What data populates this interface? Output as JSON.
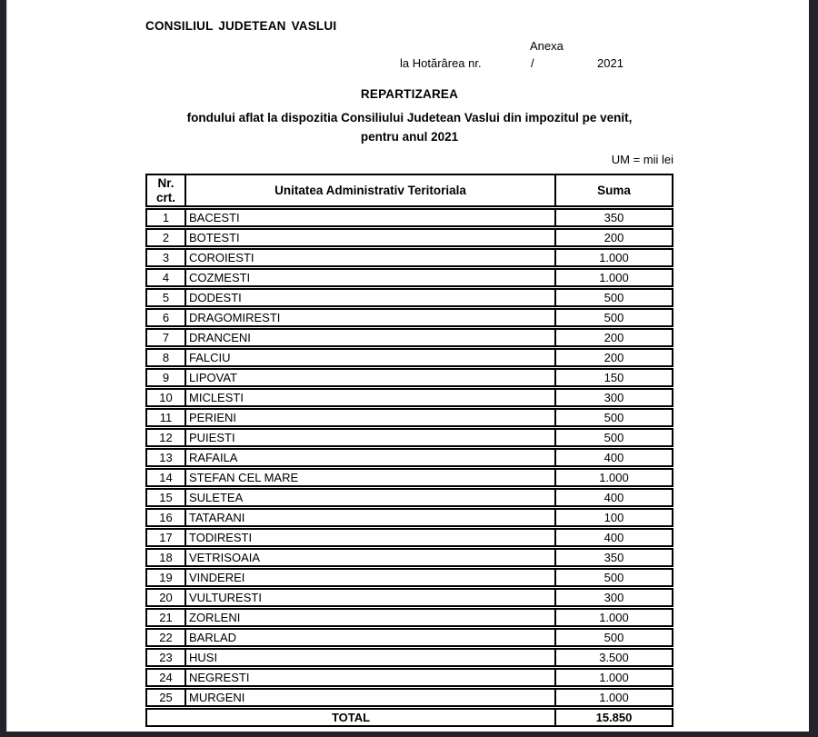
{
  "page": {
    "org_title": "CONSILIUL JUDETEAN VASLUI",
    "anexa_label": "Anexa",
    "hotarare_prefix": "la Hotărârea nr.",
    "hotarare_slash": "/",
    "hotarare_year": "2021",
    "doc_title": "REPARTIZAREA",
    "doc_subtitle_line1": "fondului aflat la dispozitia Consiliului Judetean Vaslui din impozitul pe venit,",
    "doc_subtitle_line2": "pentru anul 2021",
    "unit_note": "UM = mii lei"
  },
  "table": {
    "headers": {
      "col1": "Nr.\ncrt.",
      "col2": "Unitatea Administrativ Teritoriala",
      "col3": "Suma"
    },
    "rows": [
      {
        "nr": "1",
        "name": "BACESTI",
        "suma": "350"
      },
      {
        "nr": "2",
        "name": "BOTESTI",
        "suma": "200"
      },
      {
        "nr": "3",
        "name": "COROIESTI",
        "suma": "1.000"
      },
      {
        "nr": "4",
        "name": "COZMESTI",
        "suma": "1.000"
      },
      {
        "nr": "5",
        "name": "DODESTI",
        "suma": "500"
      },
      {
        "nr": "6",
        "name": "DRAGOMIRESTI",
        "suma": "500"
      },
      {
        "nr": "7",
        "name": "DRANCENI",
        "suma": "200"
      },
      {
        "nr": "8",
        "name": "FALCIU",
        "suma": "200"
      },
      {
        "nr": "9",
        "name": "LIPOVAT",
        "suma": "150"
      },
      {
        "nr": "10",
        "name": "MICLESTI",
        "suma": "300"
      },
      {
        "nr": "11",
        "name": "PERIENI",
        "suma": "500"
      },
      {
        "nr": "12",
        "name": "PUIESTI",
        "suma": "500"
      },
      {
        "nr": "13",
        "name": "RAFAILA",
        "suma": "400"
      },
      {
        "nr": "14",
        "name": "STEFAN CEL MARE",
        "suma": "1.000"
      },
      {
        "nr": "15",
        "name": "SULETEA",
        "suma": "400"
      },
      {
        "nr": "16",
        "name": "TATARANI",
        "suma": "100"
      },
      {
        "nr": "17",
        "name": "TODIRESTI",
        "suma": "400"
      },
      {
        "nr": "18",
        "name": "VETRISOAIA",
        "suma": "350"
      },
      {
        "nr": "19",
        "name": "VINDEREI",
        "suma": "500"
      },
      {
        "nr": "20",
        "name": "VULTURESTI",
        "suma": "300"
      },
      {
        "nr": "21",
        "name": "ZORLENI",
        "suma": "1.000"
      },
      {
        "nr": "22",
        "name": "BARLAD",
        "suma": "500"
      },
      {
        "nr": "23",
        "name": "HUSI",
        "suma": "3.500"
      },
      {
        "nr": "24",
        "name": "NEGRESTI",
        "suma": "1.000"
      },
      {
        "nr": "25",
        "name": "MURGENI",
        "suma": "1.000"
      }
    ],
    "total": {
      "label": "TOTAL",
      "suma": "15.850"
    }
  },
  "colors": {
    "viewer_background": "#232329",
    "page_background": "#ffffff",
    "text": "#000000",
    "table_border": "#000000"
  }
}
